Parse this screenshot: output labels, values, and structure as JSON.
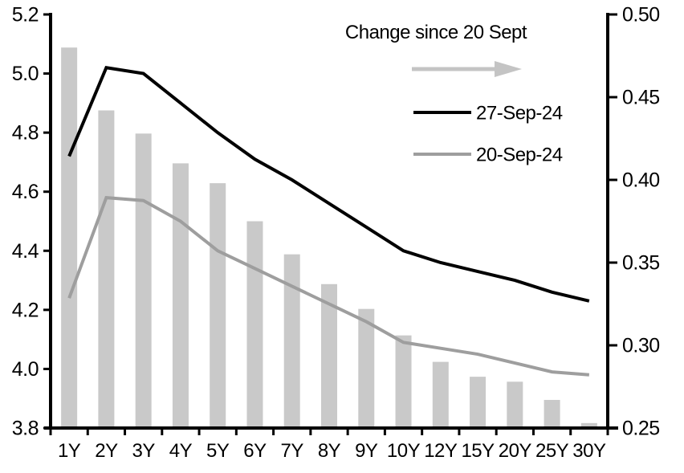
{
  "chart_data": {
    "type": "combo",
    "title": "",
    "categories": [
      "1Y",
      "2Y",
      "3Y",
      "4Y",
      "5Y",
      "6Y",
      "7Y",
      "8Y",
      "9Y",
      "10Y",
      "12Y",
      "15Y",
      "20Y",
      "25Y",
      "30Y"
    ],
    "left_axis": {
      "min": 3.8,
      "max": 5.2,
      "tick_labels": [
        "5.2",
        "5.0",
        "4.8",
        "4.6",
        "4.4",
        "4.2",
        "4.0",
        "3.8"
      ]
    },
    "right_axis": {
      "min": 0.25,
      "max": 0.5,
      "tick_labels": [
        "0.50",
        "0.45",
        "0.40",
        "0.35",
        "0.30",
        "0.25"
      ]
    },
    "grid": false,
    "series": [
      {
        "name": "Change since 20 Sept",
        "type": "bar",
        "axis": "right",
        "color": "#c9c9c9",
        "values": [
          0.48,
          0.442,
          0.428,
          0.41,
          0.398,
          0.375,
          0.355,
          0.337,
          0.322,
          0.306,
          0.29,
          0.281,
          0.278,
          0.267,
          0.253
        ]
      },
      {
        "name": "27-Sep-24",
        "type": "line",
        "axis": "left",
        "color": "#000000",
        "values": [
          4.72,
          5.02,
          5.0,
          4.9,
          4.8,
          4.71,
          4.64,
          4.56,
          4.48,
          4.4,
          4.36,
          4.33,
          4.3,
          4.26,
          4.23
        ]
      },
      {
        "name": "20-Sep-24",
        "type": "line",
        "axis": "left",
        "color": "#9e9e9e",
        "values": [
          4.24,
          4.58,
          4.57,
          4.5,
          4.4,
          4.34,
          4.28,
          4.22,
          4.16,
          4.09,
          4.07,
          4.05,
          4.02,
          3.99,
          3.98
        ]
      }
    ],
    "legend": {
      "position": "top-right-inside",
      "title": "Change since 20 Sept",
      "arrow_color": "#c4c4c4",
      "entries": [
        {
          "label": "27-Sep-24",
          "color": "#000000"
        },
        {
          "label": "20-Sep-24",
          "color": "#9e9e9e"
        }
      ]
    }
  }
}
